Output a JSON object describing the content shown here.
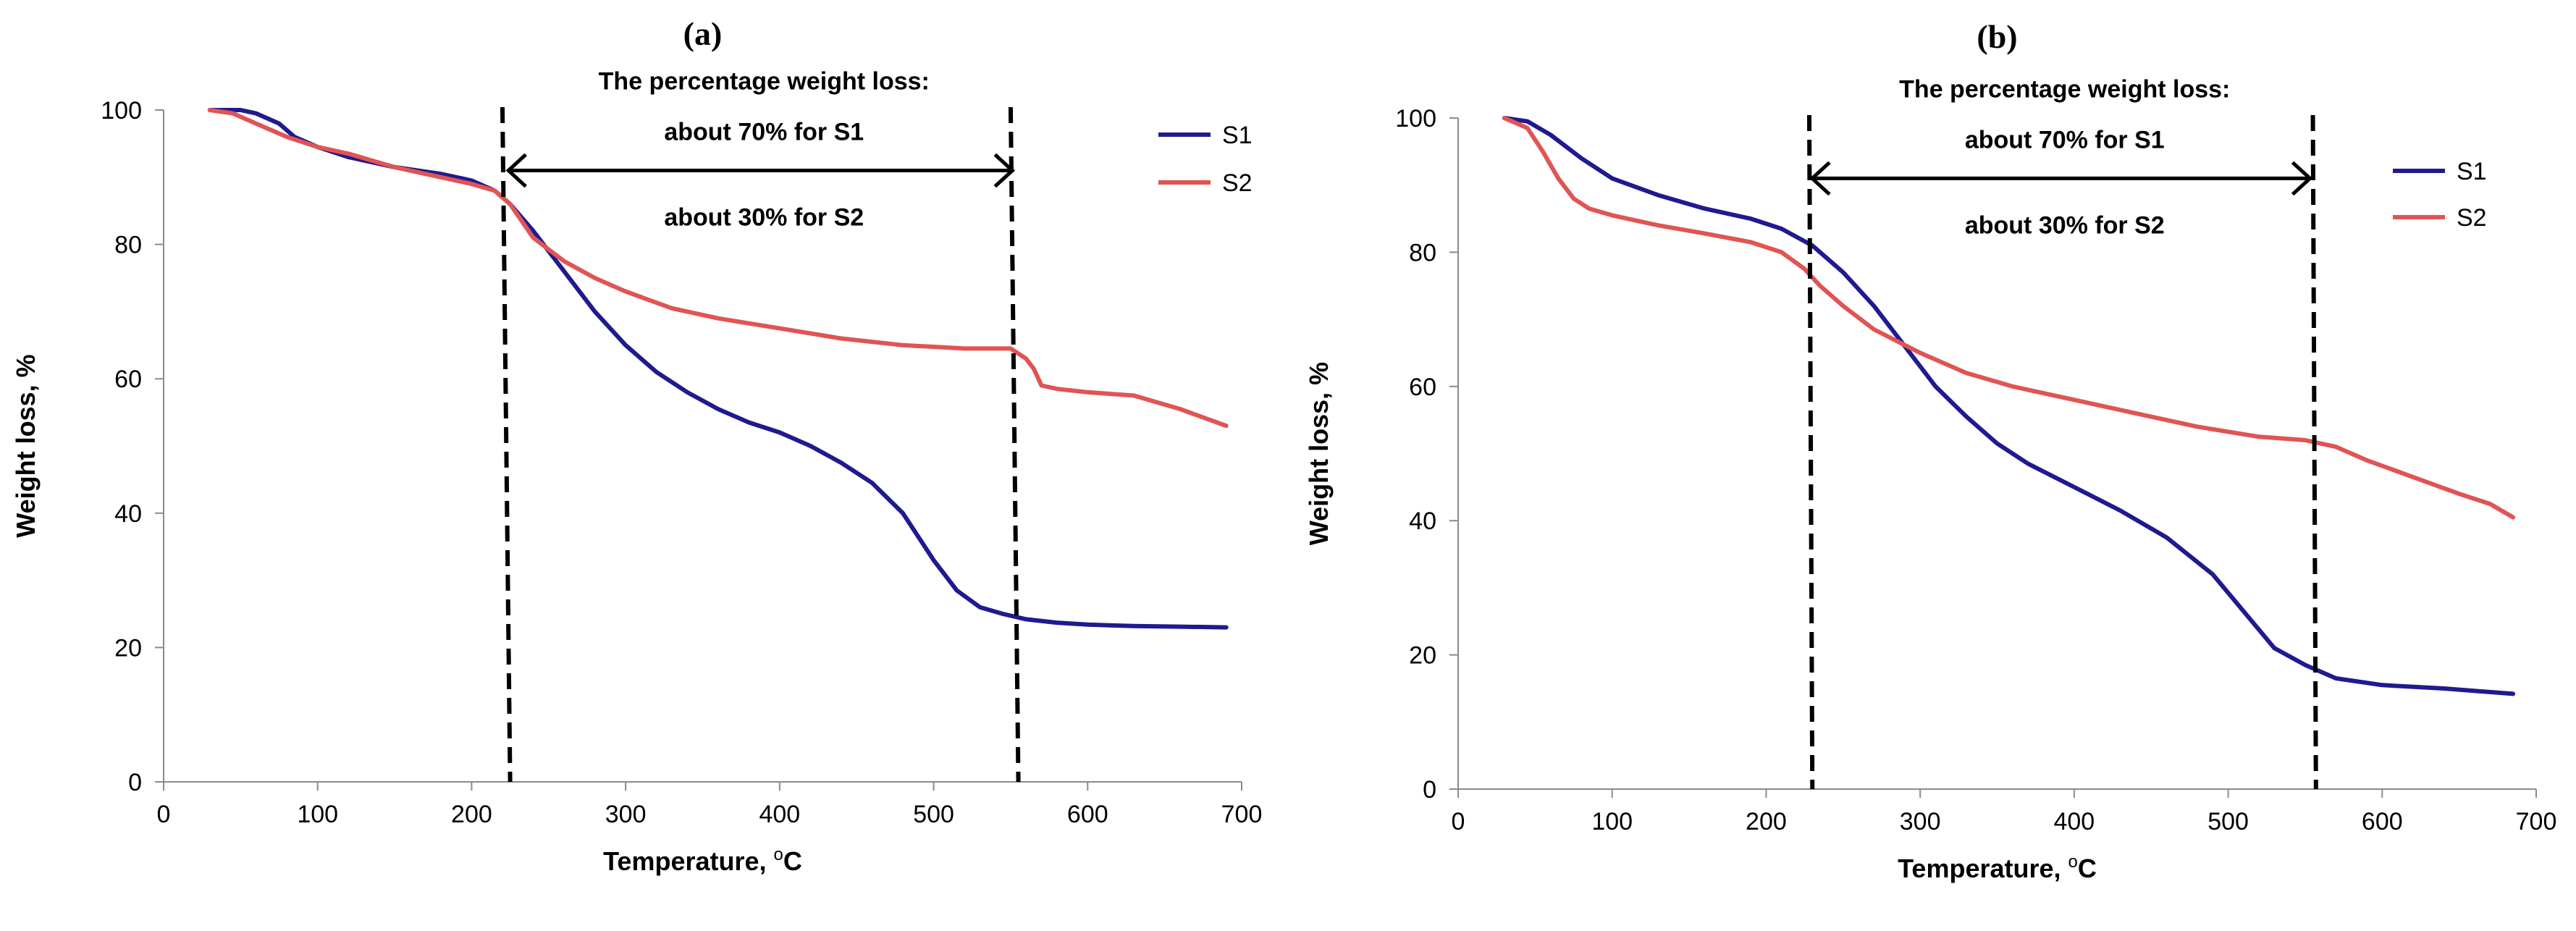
{
  "chart_data": [
    {
      "type": "line",
      "panel_label": "(a)",
      "xlabel": "Temperature, ",
      "xlabel_sup": "o",
      "xlabel_unit": "C",
      "ylabel": "Weight loss, %",
      "xlim": [
        0,
        700
      ],
      "ylim": [
        0,
        100
      ],
      "xticks": [
        0,
        100,
        200,
        300,
        400,
        500,
        600,
        700
      ],
      "yticks": [
        0,
        20,
        40,
        60,
        80,
        100
      ],
      "legend_position": "top-right",
      "annotation": {
        "title": "The percentage weight loss:",
        "line1": "about 70% for S1",
        "line2": "about 30% for S2",
        "x_start": 222,
        "x_end": 553,
        "arrow_y": 91
      },
      "vlines": [
        {
          "x_top": 220,
          "x_bottom": 225
        },
        {
          "x_top": 550,
          "x_bottom": 555
        }
      ],
      "series": [
        {
          "name": "S1",
          "color": "#1f1a8f",
          "x": [
            30,
            50,
            60,
            75,
            85,
            100,
            120,
            150,
            180,
            200,
            215,
            225,
            240,
            260,
            280,
            300,
            320,
            340,
            360,
            380,
            400,
            420,
            440,
            460,
            480,
            500,
            515,
            530,
            545,
            560,
            580,
            600,
            630,
            660,
            690
          ],
          "y": [
            100,
            100,
            99.5,
            98,
            96,
            94.5,
            93,
            91.5,
            90.5,
            89.5,
            88,
            86,
            82,
            76,
            70,
            65,
            61,
            58,
            55.5,
            53.5,
            52,
            50,
            47.5,
            44.5,
            40,
            33,
            28.5,
            26,
            25,
            24.2,
            23.7,
            23.4,
            23.2,
            23.1,
            23
          ]
        },
        {
          "name": "S2",
          "color": "#e05454",
          "x": [
            30,
            45,
            60,
            80,
            100,
            120,
            150,
            180,
            200,
            215,
            225,
            240,
            260,
            280,
            300,
            330,
            360,
            400,
            440,
            480,
            520,
            550,
            560,
            565,
            570,
            580,
            600,
            630,
            660,
            690
          ],
          "y": [
            100,
            99.5,
            98,
            96,
            94.5,
            93.5,
            91.5,
            90,
            89,
            88,
            86,
            81,
            77.5,
            75,
            73,
            70.5,
            69,
            67.5,
            66,
            65,
            64.5,
            64.5,
            63,
            61.5,
            59,
            58.5,
            58,
            57.5,
            55.5,
            53
          ]
        }
      ]
    },
    {
      "type": "line",
      "panel_label": "(b)",
      "xlabel": "Temperature, ",
      "xlabel_sup": "o",
      "xlabel_unit": "C",
      "ylabel": "Weight loss, %",
      "xlim": [
        0,
        700
      ],
      "ylim": [
        0,
        100
      ],
      "xticks": [
        0,
        100,
        200,
        300,
        400,
        500,
        600,
        700
      ],
      "yticks": [
        0,
        20,
        40,
        60,
        80,
        100
      ],
      "legend_position": "top-right",
      "annotation": {
        "title": "The percentage weight loss:",
        "line1": "about 70% for S1",
        "line2": "about 30% for S2",
        "x_start": 228,
        "x_end": 555,
        "arrow_y": 91
      },
      "vlines": [
        {
          "x_top": 228,
          "x_bottom": 230
        },
        {
          "x_top": 555,
          "x_bottom": 557
        }
      ],
      "series": [
        {
          "name": "S1",
          "color": "#1f1a8f",
          "x": [
            30,
            45,
            60,
            80,
            100,
            130,
            160,
            190,
            210,
            230,
            250,
            270,
            290,
            310,
            330,
            350,
            370,
            400,
            430,
            460,
            490,
            510,
            530,
            550,
            570,
            600,
            640,
            685
          ],
          "y": [
            100,
            99.5,
            97.5,
            94,
            91,
            88.5,
            86.5,
            85,
            83.5,
            81,
            77,
            72,
            66,
            60,
            55.5,
            51.5,
            48.5,
            45,
            41.5,
            37.5,
            32,
            26.5,
            21,
            18.5,
            16.5,
            15.5,
            15,
            14.2
          ]
        },
        {
          "name": "S2",
          "color": "#e05454",
          "x": [
            30,
            45,
            55,
            65,
            75,
            85,
            100,
            130,
            160,
            190,
            210,
            225,
            235,
            250,
            270,
            300,
            330,
            360,
            400,
            440,
            480,
            520,
            550,
            570,
            590,
            620,
            650,
            670,
            685
          ],
          "y": [
            100,
            98.5,
            95,
            91,
            88,
            86.5,
            85.5,
            84,
            82.8,
            81.5,
            80,
            77.5,
            75,
            72,
            68.5,
            65,
            62,
            60,
            58,
            56,
            54,
            52.5,
            52,
            51,
            49,
            46.5,
            44,
            42.5,
            40.5
          ]
        }
      ]
    }
  ]
}
